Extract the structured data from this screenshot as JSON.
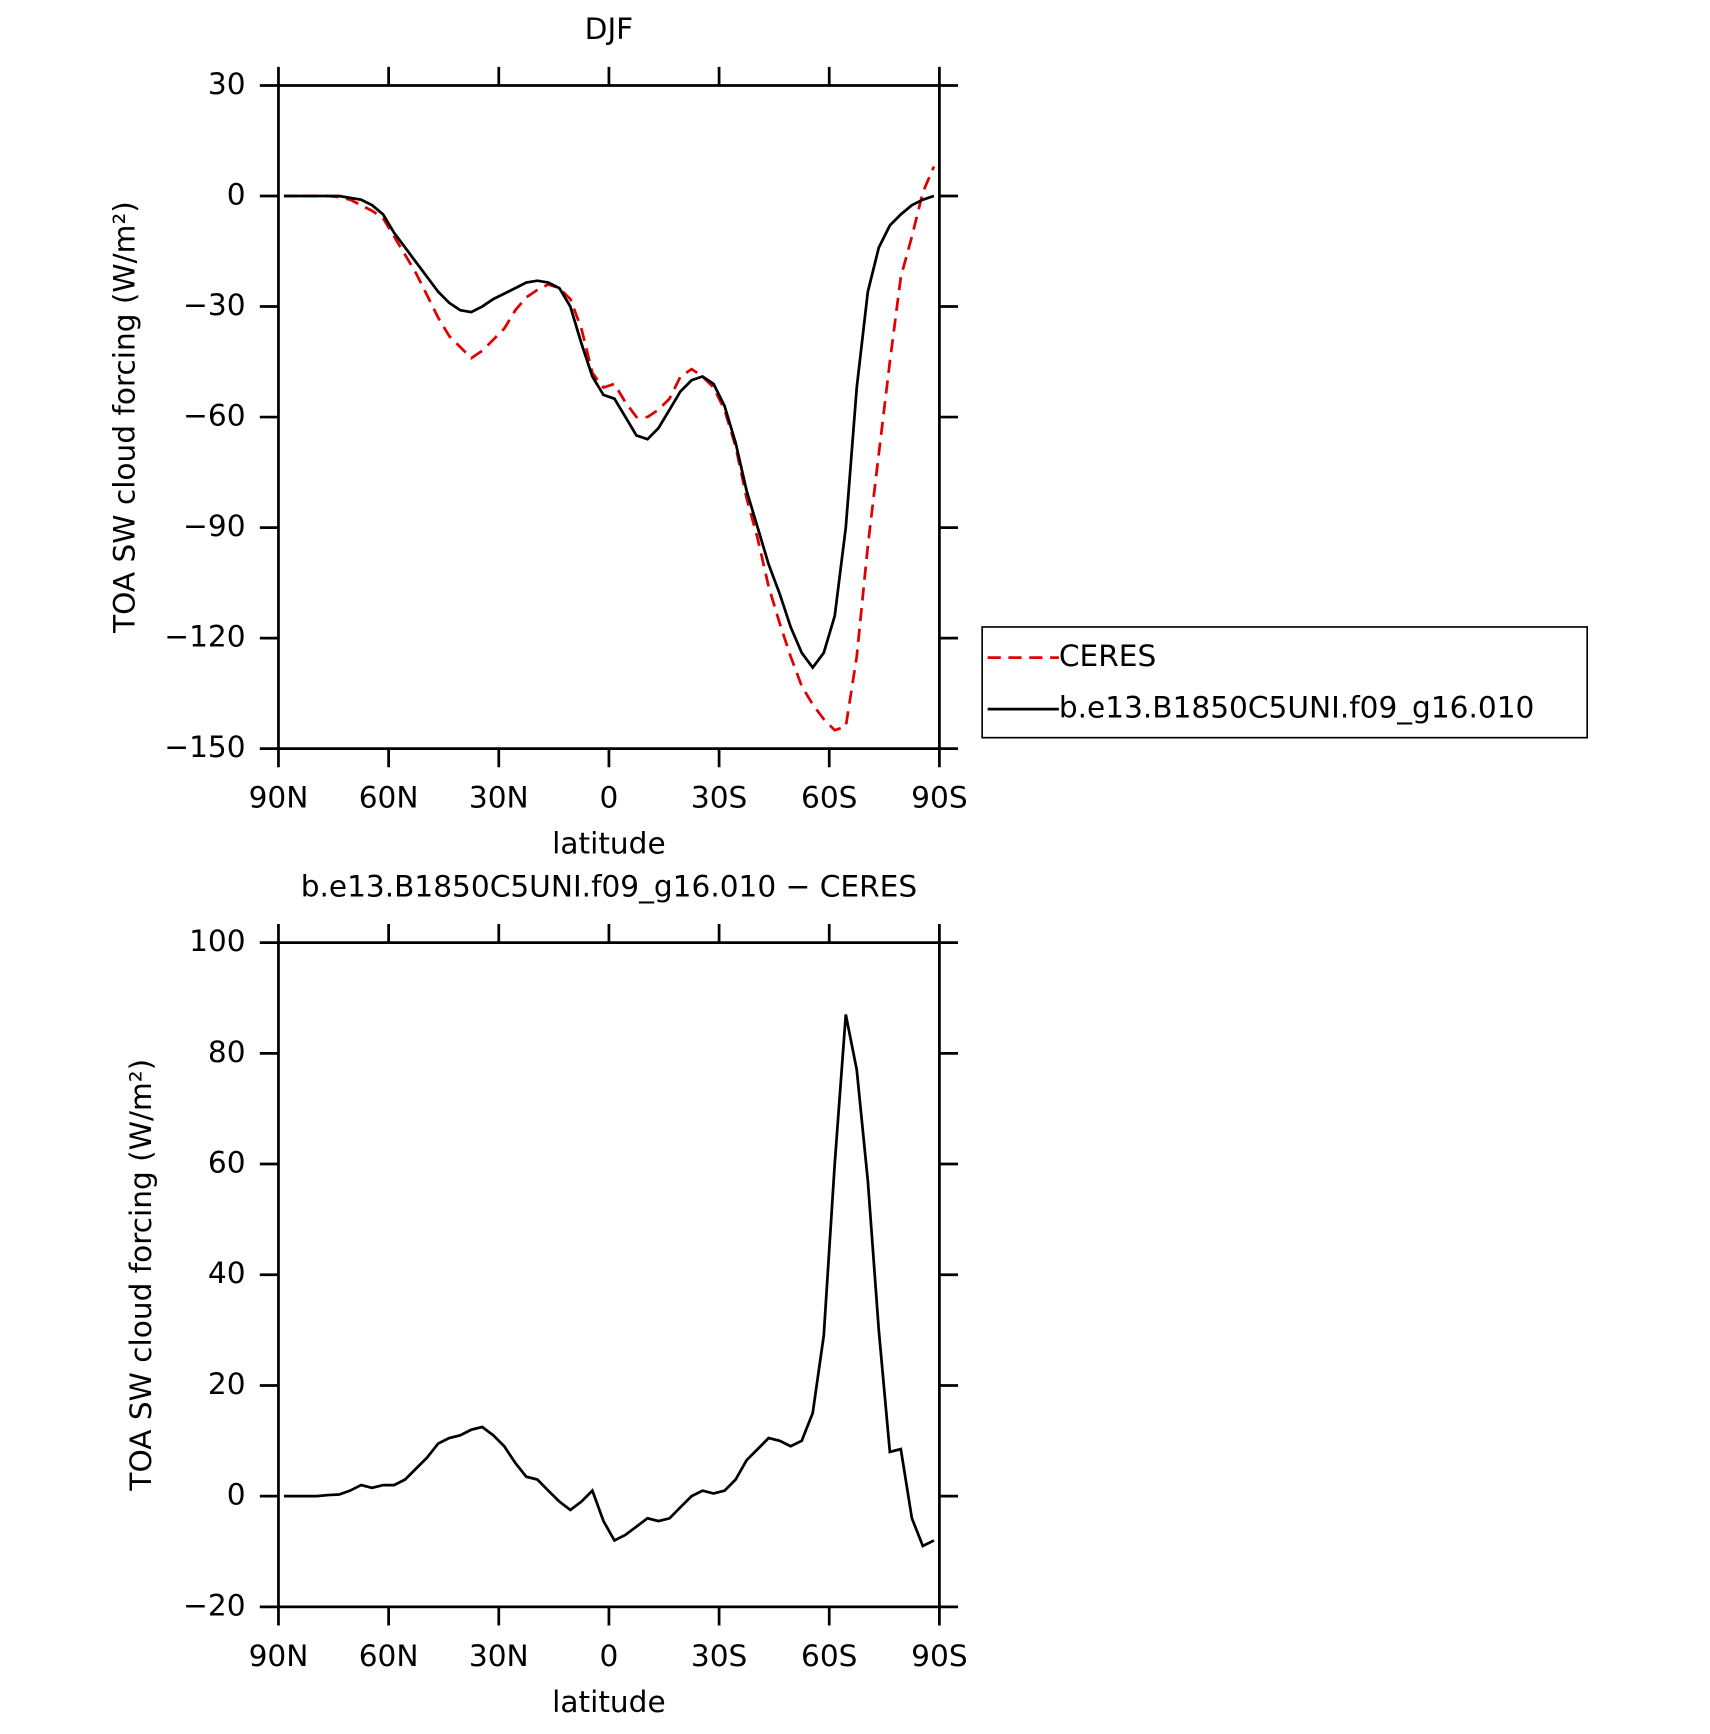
{
  "chart_data": [
    {
      "type": "line",
      "title": "DJF",
      "xlabel": "latitude",
      "ylabel": "TOA SW cloud forcing (W/m²)",
      "x": [
        88.5,
        85.5,
        82.5,
        79.5,
        76.5,
        73.5,
        70.5,
        67.5,
        64.5,
        61.5,
        58.5,
        55.5,
        52.5,
        49.5,
        46.5,
        43.5,
        40.5,
        37.5,
        34.5,
        31.5,
        28.5,
        25.5,
        22.5,
        19.5,
        16.5,
        13.5,
        10.5,
        7.5,
        4.5,
        1.5,
        -1.5,
        -4.5,
        -7.5,
        -10.5,
        -13.5,
        -16.5,
        -19.5,
        -22.5,
        -25.5,
        -28.5,
        -31.5,
        -34.5,
        -37.5,
        -40.5,
        -43.5,
        -46.5,
        -49.5,
        -52.5,
        -55.5,
        -58.5,
        -61.5,
        -64.5,
        -67.5,
        -70.5,
        -73.5,
        -76.5,
        -79.5,
        -82.5,
        -85.5,
        -88.5
      ],
      "series": [
        {
          "name": "CERES",
          "color": "#e00000",
          "dash": true,
          "values": [
            0,
            0,
            0,
            0,
            0,
            -0.3,
            -1,
            -2.5,
            -4,
            -6,
            -11,
            -16,
            -21,
            -27,
            -33,
            -38,
            -41,
            -44,
            -42,
            -39,
            -36,
            -31,
            -27.5,
            -25.5,
            -24,
            -25,
            -28,
            -36,
            -48,
            -52,
            -51,
            -56,
            -60,
            -60,
            -58,
            -55,
            -49,
            -47,
            -49,
            -52,
            -58,
            -68,
            -82,
            -93,
            -106,
            -116,
            -125,
            -133,
            -138,
            -142,
            -145,
            -144,
            -125,
            -95,
            -70,
            -45,
            -22,
            -11,
            1,
            8
          ]
        },
        {
          "name": "b.e13.B1850C5UNI.f09_g16.010",
          "color": "#000000",
          "dash": false,
          "values": [
            0,
            0,
            0,
            0,
            0,
            0,
            -0.5,
            -1,
            -2.5,
            -5,
            -10,
            -14,
            -18,
            -22,
            -26,
            -29,
            -31,
            -31.5,
            -30,
            -28,
            -26.5,
            -25,
            -23.5,
            -23,
            -23.5,
            -25,
            -30,
            -40,
            -49,
            -54,
            -55,
            -60,
            -65,
            -66,
            -63,
            -58,
            -53,
            -50,
            -49,
            -51,
            -57,
            -67,
            -80,
            -90,
            -100,
            -108,
            -117,
            -124,
            -128,
            -124,
            -114,
            -90,
            -52,
            -26,
            -14,
            -8,
            -5,
            -2.5,
            -1,
            0
          ]
        }
      ],
      "xlim": [
        90,
        -90
      ],
      "xticks": [
        {
          "value": 90,
          "label": "90N"
        },
        {
          "value": 60,
          "label": "60N"
        },
        {
          "value": 30,
          "label": "30N"
        },
        0,
        {
          "value": -30,
          "label": "30S"
        },
        {
          "value": -60,
          "label": "60S"
        },
        {
          "value": -90,
          "label": "90S"
        }
      ],
      "ylim": [
        -150,
        30
      ],
      "yticks": [
        {
          "value": -150,
          "label": "−150"
        },
        {
          "value": -120,
          "label": "−120"
        },
        {
          "value": -90,
          "label": "−90"
        },
        {
          "value": -60,
          "label": "−60"
        },
        {
          "value": -30,
          "label": "−30"
        },
        0,
        30
      ],
      "legend": "right"
    },
    {
      "type": "line",
      "title": "b.e13.B1850C5UNI.f09_g16.010 − CERES",
      "xlabel": "latitude",
      "ylabel": "TOA SW cloud forcing (W/m²)",
      "x": [
        88.5,
        85.5,
        82.5,
        79.5,
        76.5,
        73.5,
        70.5,
        67.5,
        64.5,
        61.5,
        58.5,
        55.5,
        52.5,
        49.5,
        46.5,
        43.5,
        40.5,
        37.5,
        34.5,
        31.5,
        28.5,
        25.5,
        22.5,
        19.5,
        16.5,
        13.5,
        10.5,
        7.5,
        4.5,
        1.5,
        -1.5,
        -4.5,
        -7.5,
        -10.5,
        -13.5,
        -16.5,
        -19.5,
        -22.5,
        -25.5,
        -28.5,
        -31.5,
        -34.5,
        -37.5,
        -40.5,
        -43.5,
        -46.5,
        -49.5,
        -52.5,
        -55.5,
        -58.5,
        -61.5,
        -64.5,
        -67.5,
        -70.5,
        -73.5,
        -76.5,
        -79.5,
        -82.5,
        -85.5,
        -88.5
      ],
      "series": [
        {
          "color": "#000000",
          "dash": false,
          "values": [
            0,
            0,
            0,
            0,
            0.2,
            0.3,
            1,
            2,
            1.5,
            2,
            2,
            3,
            5,
            7,
            9.5,
            10.5,
            11,
            12,
            12.5,
            11,
            9,
            6,
            3.5,
            3,
            1,
            -1,
            -2.5,
            -1,
            1,
            -4.5,
            -8,
            -7,
            -5.5,
            -4,
            -4.5,
            -4,
            -2,
            0,
            1,
            0.5,
            1,
            3,
            6.5,
            8.5,
            10.5,
            10,
            9,
            10,
            15,
            29,
            60,
            87,
            77,
            57,
            30,
            8,
            8.5,
            -4,
            -9,
            -8
          ]
        }
      ],
      "xlim": [
        90,
        -90
      ],
      "xticks": [
        {
          "value": 90,
          "label": "90N"
        },
        {
          "value": 60,
          "label": "60N"
        },
        {
          "value": 30,
          "label": "30N"
        },
        0,
        {
          "value": -30,
          "label": "30S"
        },
        {
          "value": -60,
          "label": "60S"
        },
        {
          "value": -90,
          "label": "90S"
        }
      ],
      "ylim": [
        -20,
        100
      ],
      "yticks": [
        {
          "value": -20,
          "label": "−20"
        },
        0,
        20,
        40,
        60,
        80,
        100
      ]
    }
  ]
}
